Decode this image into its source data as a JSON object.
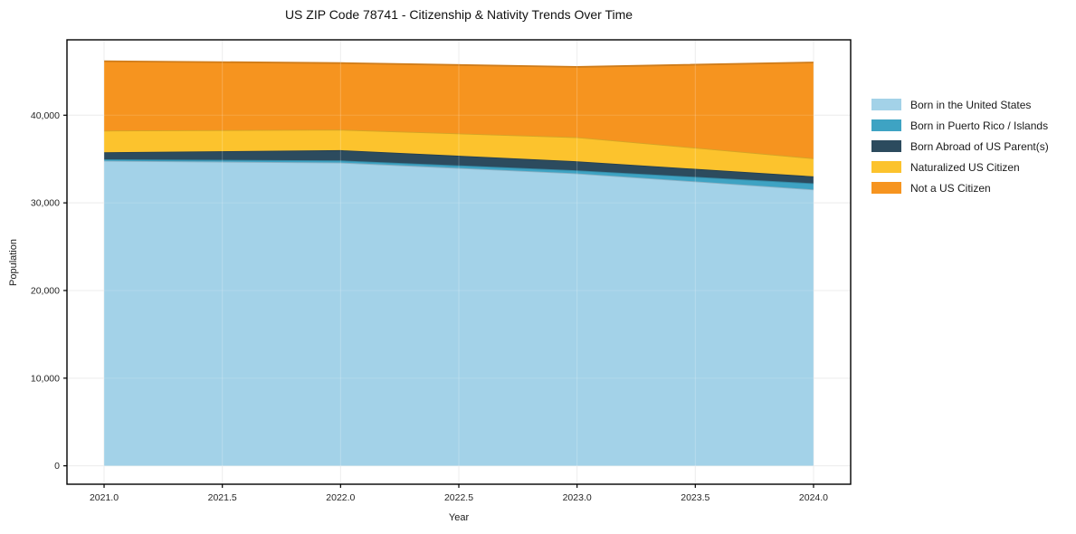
{
  "figure": {
    "title": "US ZIP Code 78741 - Citizenship & Nativity Trends Over Time"
  },
  "chart_data": {
    "type": "area",
    "stacked": true,
    "title": "US ZIP Code 78741 - Citizenship & Nativity Trends Over Time",
    "xlabel": "Year",
    "ylabel": "Population",
    "x": [
      2021,
      2022,
      2023,
      2024
    ],
    "series": [
      {
        "name": "Born in the United States",
        "color": "#A3D2E8",
        "values": [
          34800,
          34600,
          33360,
          31530
        ]
      },
      {
        "name": "Born in Puerto Rico / Islands",
        "color": "#3EA3C3",
        "values": [
          170,
          240,
          350,
          700
        ]
      },
      {
        "name": "Born Abroad of US Parent(s)",
        "color": "#2C4B5E",
        "values": [
          800,
          1170,
          1030,
          790
        ]
      },
      {
        "name": "Naturalized US Citizen",
        "color": "#FCC32D",
        "values": [
          2470,
          2340,
          2750,
          2070
        ]
      },
      {
        "name": "Not a US Citizen",
        "color": "#F6941F",
        "values": [
          7920,
          7600,
          8020,
          10930
        ]
      }
    ],
    "totals": [
      46160,
      45950,
      45510,
      46020
    ],
    "xticks": {
      "values": [
        2021.0,
        2021.5,
        2022.0,
        2022.5,
        2023.0,
        2023.5,
        2024.0
      ],
      "labels": [
        "2021.0",
        "2021.5",
        "2022.0",
        "2022.5",
        "2023.0",
        "2023.5",
        "2024.0"
      ]
    },
    "yticks": {
      "values": [
        0,
        10000,
        20000,
        30000,
        40000
      ],
      "labels": [
        "0",
        "10,000",
        "20,000",
        "30,000",
        "40,000"
      ]
    },
    "xlim": [
      2020.843,
      2024.157
    ],
    "ylim": [
      -2100,
      48600
    ],
    "grid": true,
    "grid_color": "#e9e9e9",
    "legend_position": "right-outside",
    "legend": [
      "Born in the United States",
      "Born in Puerto Rico / Islands",
      "Born Abroad of US Parent(s)",
      "Naturalized US Citizen",
      "Not a US Citizen"
    ]
  }
}
